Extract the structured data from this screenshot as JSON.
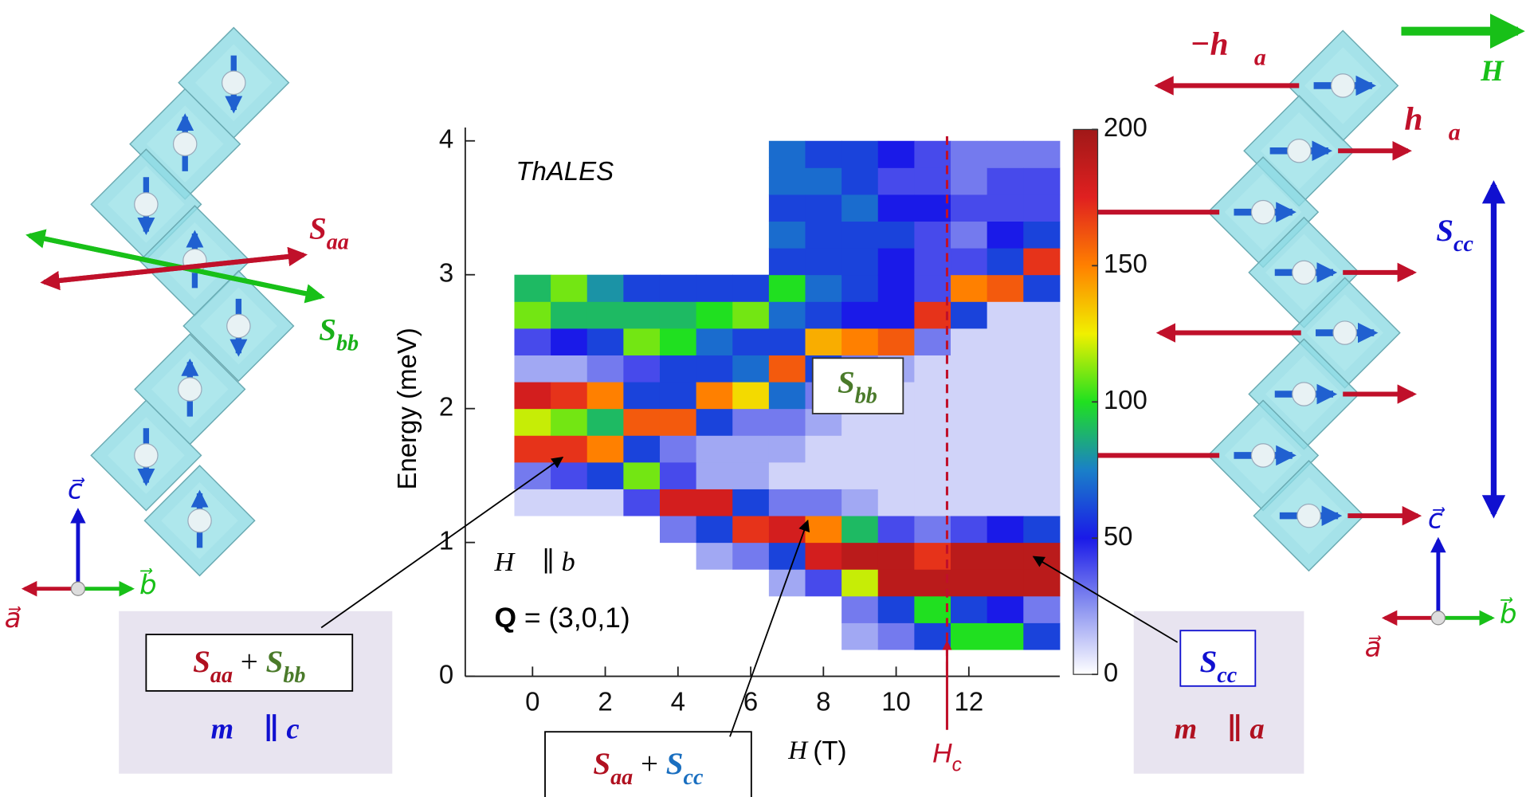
{
  "chart_data": {
    "type": "heatmap",
    "title": "ThALES",
    "x_label": {
      "symbol": "H",
      "unit": "(T)"
    },
    "y_label": "Energy (meV)",
    "xbins": [
      -0.5,
      0.5,
      1.5,
      2.5,
      3.5,
      4.5,
      5.5,
      6.5,
      7.5,
      8.5,
      9.5,
      10.5,
      11.5,
      12.5,
      13.5,
      14.5
    ],
    "ybins": [
      0,
      0.2,
      0.4,
      0.6,
      0.8,
      1.0,
      1.2,
      1.4,
      1.6,
      1.8,
      2.0,
      2.2,
      2.4,
      2.6,
      2.8,
      3.0,
      3.2,
      3.4,
      3.6,
      3.8,
      4.0
    ],
    "z": [
      [
        null,
        null,
        null,
        null,
        null,
        null,
        10,
        30,
        170,
        120,
        180,
        20,
        40,
        110,
        90,
        null,
        null,
        null,
        null,
        null
      ],
      [
        null,
        null,
        null,
        null,
        null,
        null,
        10,
        40,
        170,
        110,
        170,
        20,
        50,
        90,
        110,
        null,
        null,
        null,
        null,
        null
      ],
      [
        null,
        null,
        null,
        null,
        null,
        null,
        10,
        60,
        150,
        90,
        150,
        30,
        60,
        90,
        80,
        null,
        null,
        null,
        null,
        null
      ],
      [
        null,
        null,
        null,
        null,
        null,
        null,
        40,
        110,
        60,
        160,
        60,
        40,
        110,
        90,
        60,
        null,
        null,
        null,
        null,
        null
      ],
      [
        null,
        null,
        null,
        null,
        null,
        30,
        180,
        40,
        30,
        160,
        60,
        60,
        100,
        90,
        60,
        null,
        null,
        null,
        null,
        null
      ],
      [
        null,
        null,
        null,
        null,
        20,
        60,
        180,
        20,
        20,
        60,
        150,
        60,
        70,
        100,
        60,
        null,
        null,
        null,
        null,
        null
      ],
      [
        null,
        null,
        null,
        null,
        30,
        170,
        60,
        20,
        20,
        30,
        130,
        70,
        60,
        110,
        60,
        null,
        null,
        null,
        null,
        null
      ],
      [
        null,
        null,
        null,
        20,
        60,
        180,
        30,
        10,
        20,
        30,
        70,
        160,
        60,
        70,
        100,
        60,
        70,
        60,
        70,
        70
      ],
      [
        null,
        null,
        null,
        40,
        180,
        150,
        30,
        10,
        10,
        20,
        30,
        60,
        140,
        60,
        70,
        60,
        60,
        60,
        70,
        60
      ],
      [
        null,
        20,
        30,
        120,
        190,
        90,
        20,
        10,
        10,
        10,
        10,
        30,
        150,
        50,
        60,
        60,
        60,
        70,
        60,
        60
      ],
      [
        null,
        30,
        60,
        190,
        190,
        40,
        10,
        10,
        10,
        10,
        10,
        20,
        160,
        50,
        50,
        50,
        60,
        50,
        40,
        50
      ],
      [
        null,
        60,
        100,
        190,
        170,
        30,
        10,
        10,
        10,
        10,
        10,
        10,
        30,
        170,
        40,
        40,
        40,
        50,
        40,
        40
      ],
      [
        null,
        100,
        60,
        190,
        190,
        40,
        10,
        10,
        10,
        10,
        10,
        10,
        10,
        60,
        150,
        40,
        30,
        40,
        30,
        30
      ],
      [
        null,
        100,
        50,
        190,
        190,
        50,
        10,
        10,
        10,
        10,
        10,
        10,
        10,
        10,
        160,
        60,
        50,
        40,
        40,
        30
      ],
      [
        null,
        60,
        30,
        190,
        190,
        60,
        10,
        10,
        10,
        10,
        10,
        10,
        10,
        10,
        60,
        170,
        60,
        40,
        40,
        30
      ]
    ],
    "xlim": [
      -1.85,
      14.5
    ],
    "ylim": [
      0,
      4.1
    ],
    "xticks": [
      0,
      2,
      4,
      6,
      8,
      10,
      12
    ],
    "yticks": [
      0,
      1,
      2,
      3,
      4
    ],
    "colorbar": {
      "lim": [
        0,
        200
      ],
      "ticks": [
        0,
        50,
        100,
        150,
        200
      ],
      "colors": [
        "#ffffff",
        "#8a92f0",
        "#1a1ae8",
        "#1a80c8",
        "#20e020",
        "#f0f000",
        "#ff8000",
        "#e02020",
        "#a01818"
      ]
    },
    "critical_field": {
      "value": 11.4,
      "label": {
        "symbol": "H",
        "sub": "c"
      },
      "color": "#c0102a"
    }
  },
  "annotations": {
    "field_direction": "H⃗ ∥ b⃗",
    "q": {
      "bold": "Q",
      "rest": " = (3,0,1)"
    },
    "box_sbb": {
      "symbol": "S",
      "sub": "bb",
      "color": "#4a7a2a"
    },
    "box_left": {
      "left": {
        "symbol": "S",
        "sub": "aa",
        "color": "#b01020"
      },
      "op": " + ",
      "right": {
        "symbol": "S",
        "sub": "bb",
        "color": "#4a7a2a"
      }
    },
    "moment_left": "m⃗ ∥ c",
    "box_bottom": {
      "left": {
        "symbol": "S",
        "sub": "aa",
        "color": "#b01020"
      },
      "op": " + ",
      "right": {
        "symbol": "S",
        "sub": "cc",
        "color": "#1a6fc0"
      }
    },
    "box_right": {
      "symbol": "S",
      "sub": "cc",
      "color": "#1010d0"
    },
    "moment_right": "m⃗ ∥ a"
  },
  "left_structure": {
    "s_aa": {
      "symbol": "S",
      "sub": "aa",
      "color": "#c0102a"
    },
    "s_bb": {
      "symbol": "S",
      "sub": "bb",
      "color": "#18b018"
    },
    "axes": {
      "c": "c⃗",
      "b": "b⃗",
      "a": "a⃗"
    }
  },
  "right_structure": {
    "minus_h_a": {
      "symbol": "−h⃗",
      "sub": "a",
      "color": "#c0102a"
    },
    "h_a": {
      "symbol": "h⃗",
      "sub": "a",
      "color": "#c0102a"
    },
    "field": "H⃗",
    "s_cc": {
      "symbol": "S",
      "sub": "cc",
      "color": "#1010d0"
    },
    "axes": {
      "c": "c⃗",
      "b": "b⃗",
      "a": "a⃗"
    }
  }
}
